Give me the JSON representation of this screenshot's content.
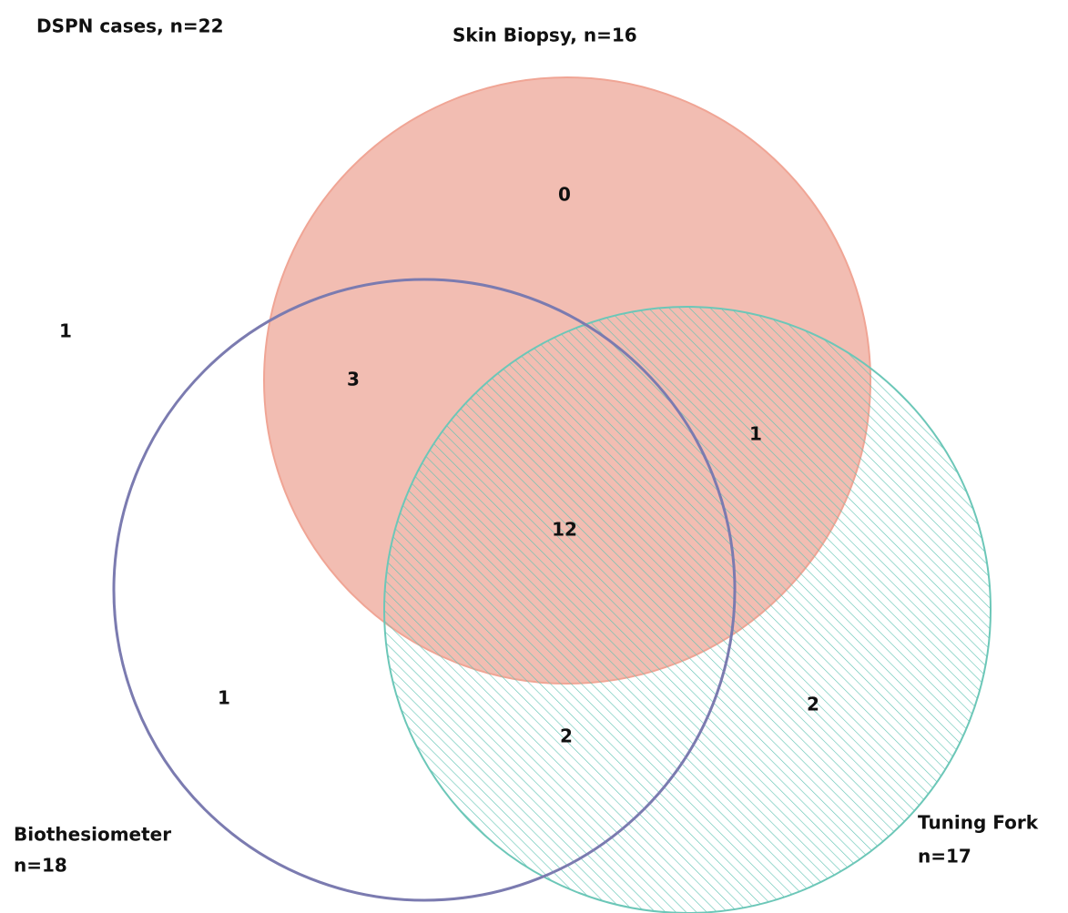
{
  "title": "DSPN cases, n=22",
  "sets": [
    {
      "label": "Skin Biopsy, n=16"
    },
    {
      "label": "Biothesiometer",
      "count": "n=18"
    },
    {
      "label": "Tuning Fork",
      "count": "n=17"
    }
  ],
  "regions": {
    "none": 1,
    "skin_only": 0,
    "skin_bio": 3,
    "skin_fork": 1,
    "all_three": 12,
    "bio_only": 1,
    "bio_fork": 2,
    "fork_only": 2
  }
}
